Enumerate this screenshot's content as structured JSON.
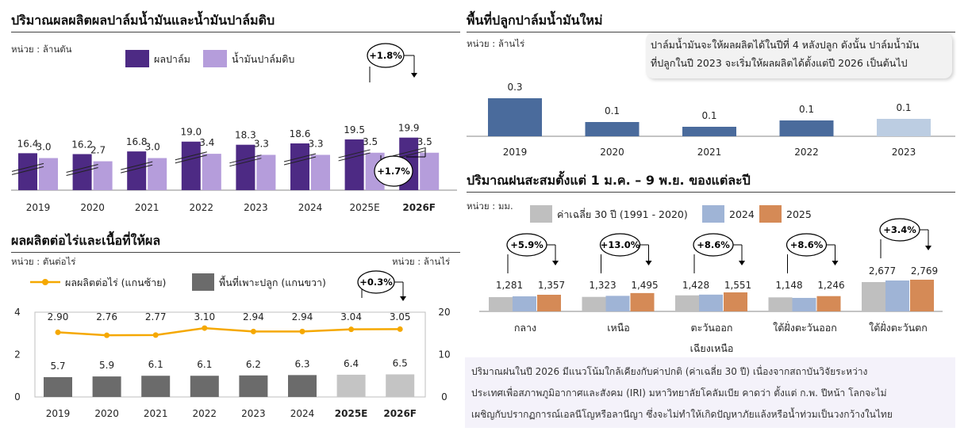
{
  "panel1": {
    "title": "ปริมาณผลผลิตผลปาล์มน้ำมันและน้ำมันปาล์มดิบ",
    "unit": "หน่วย : ล้านตัน",
    "legend": [
      {
        "label": "ผลปาล์ม",
        "color": "#4d2a84"
      },
      {
        "label": "น้ำมันปาล์มดิบ",
        "color": "#b59ddb"
      }
    ],
    "callout_top": "+1.8%",
    "callout_bottom": "+1.7%"
  },
  "panel2": {
    "title": "ผลผลิตต่อไร่และเนื้อที่ให้ผล",
    "unit_left": "หน่วย : ตันต่อไร่",
    "unit_right": "หน่วย : ล้านไร่",
    "legend": [
      {
        "label": "ผลผลิตต่อไร่ (แกนซ้าย)",
        "color": "#f5a800"
      },
      {
        "label": "พื้นที่เพาะปลูก (แกนขวา)",
        "color": "#6b6b6b"
      }
    ],
    "callout": "+0.3%"
  },
  "panel3": {
    "title": "พื้นที่ปลูกปาล์มน้ำมันใหม่",
    "unit": "หน่วย : ล้านไร่",
    "note_lines": [
      "ปาล์มน้ำมันจะให้ผลผลิตได้ในปีที่ 4 หลังปลูก ดังนั้น ปาล์มน้ำมัน",
      "ที่ปลูกในปี 2023 จะเริ่มให้ผลผลิตได้ตั้งแต่ปี 2026 เป็นต้นไป"
    ]
  },
  "panel4": {
    "title": "ปริมาณฝนสะสมตั้งแต่ 1 ม.ค. – 9 พ.ย. ของแต่ละปี",
    "unit": "หน่วย : มม.",
    "legend": [
      {
        "label": "ค่าเฉลี่ย 30 ปี (1991 - 2020)",
        "color": "#bfbfbf"
      },
      {
        "label": "2024",
        "color": "#9fb4d6"
      },
      {
        "label": "2025",
        "color": "#d58a56"
      }
    ],
    "callouts": [
      "+5.9%",
      "+13.0%",
      "+8.6%",
      "+8.6%",
      "+3.4%"
    ],
    "category_lines": [
      [
        "กลาง"
      ],
      [
        "เหนือ"
      ],
      [
        "ตะวันออก",
        "เฉียงเหนือ"
      ],
      [
        "ใต้ฝั่งตะวันออก"
      ],
      [
        "ใต้ฝั่งตะวันตก"
      ]
    ],
    "note_lines": [
      "ปริมาณฝนในปี 2026 มีแนวโน้มใกล้เคียงกับค่าปกติ (ค่าเฉลี่ย 30 ปี) เนื่องจากสถาบันวิจัยระหว่าง",
      "ประเทศเพื่อสภาพภูมิอากาศและสังคม (IRI) มหาวิทยาลัยโคลัมเบีย คาดว่า ตั้งแต่ ก.พ. ปีหน้า โลกจะไม่",
      "เผชิญกับปรากฏการณ์เอลนีโญหรือลานีญา ซึ่งจะไม่ทำให้เกิดปัญหาภัยแล้งหรือน้ำท่วมเป็นวงกว้างในไทย"
    ]
  },
  "chart_data": [
    {
      "type": "bar",
      "title": "ปริมาณผลผลิตผลปาล์มน้ำมันและน้ำมันปาล์มดิบ",
      "categories": [
        "2019",
        "2020",
        "2021",
        "2022",
        "2023",
        "2024",
        "2025E",
        "2026F"
      ],
      "bold_categories": [
        "2026F"
      ],
      "series": [
        {
          "name": "ผลปาล์ม",
          "values": [
            16.4,
            16.2,
            16.8,
            19.0,
            18.3,
            18.6,
            19.5,
            19.9
          ],
          "labels": [
            "16.4",
            "16.2",
            "16.8",
            "19.0",
            "18.3",
            "18.6",
            "19.5",
            "19.9"
          ],
          "color": "#4d2a84"
        },
        {
          "name": "น้ำมันปาล์มดิบ",
          "values": [
            3.0,
            2.7,
            3.0,
            3.4,
            3.3,
            3.3,
            3.5,
            3.5
          ],
          "labels": [
            "3.0",
            "2.7",
            "3.0",
            "3.4",
            "3.3",
            "3.3",
            "3.5",
            "3.5"
          ],
          "color": "#b59ddb"
        }
      ],
      "axis_break": true
    },
    {
      "type": "bar",
      "title": "ผลผลิตต่อไร่และเนื้อที่ให้ผล",
      "categories": [
        "2019",
        "2020",
        "2021",
        "2022",
        "2023",
        "2024",
        "2025E",
        "2026F"
      ],
      "bold_categories": [
        "2025E",
        "2026F"
      ],
      "series": [
        {
          "name": "ผลผลิตต่อไร่ (แกนซ้าย)",
          "type": "line",
          "axis": "left",
          "values": [
            2.9,
            2.76,
            2.77,
            3.1,
            2.94,
            2.94,
            3.04,
            3.05
          ],
          "labels": [
            "2.90",
            "2.76",
            "2.77",
            "3.10",
            "2.94",
            "2.94",
            "3.04",
            "3.05"
          ],
          "color": "#f5a800"
        },
        {
          "name": "พื้นที่เพาะปลูก (แกนขวา)",
          "type": "bar",
          "axis": "right",
          "values": [
            5.7,
            5.9,
            6.1,
            6.1,
            6.2,
            6.3,
            6.4,
            6.5
          ],
          "labels": [
            "5.7",
            "5.9",
            "6.1",
            "6.1",
            "6.2",
            "6.3",
            "6.4",
            "6.5"
          ],
          "colors": [
            "#6b6b6b",
            "#6b6b6b",
            "#6b6b6b",
            "#6b6b6b",
            "#6b6b6b",
            "#6b6b6b",
            "#c4c4c4",
            "#c4c4c4"
          ]
        }
      ],
      "ylim_left": [
        0,
        4
      ],
      "yticks_left": [
        "0",
        "2",
        "4"
      ],
      "ylim_right": [
        0,
        20
      ],
      "yticks_right": [
        "0",
        "10",
        "20"
      ],
      "grid": false
    },
    {
      "type": "bar",
      "title": "พื้นที่ปลูกปาล์มน้ำมันใหม่",
      "categories": [
        "2019",
        "2020",
        "2021",
        "2022",
        "2023"
      ],
      "values": [
        0.3,
        0.1,
        0.1,
        0.1,
        0.1
      ],
      "labels": [
        "0.3",
        "0.1",
        "0.1",
        "0.1",
        "0.1"
      ],
      "colors": [
        "#4a6b9c",
        "#4a6b9c",
        "#4a6b9c",
        "#4a6b9c",
        "#bccde2"
      ]
    },
    {
      "type": "bar",
      "title": "ปริมาณฝนสะสมตั้งแต่ 1 ม.ค. – 9 พ.ย. ของแต่ละปี",
      "categories": [
        "กลาง",
        "เหนือ",
        "ตะวันออกเฉียงเหนือ",
        "ใต้ฝั่งตะวันออก",
        "ใต้ฝั่งตะวันตก"
      ],
      "series": [
        {
          "name": "ค่าเฉลี่ย 30 ปี (1991 - 2020)",
          "values": [
            1200,
            1220,
            1350,
            1180,
            2600
          ],
          "color": "#bfbfbf"
        },
        {
          "name": "2024",
          "values": [
            1281,
            1323,
            1428,
            1148,
            2677
          ],
          "labels": [
            "1,281",
            "1,323",
            "1,428",
            "1,148",
            "2,677"
          ],
          "color": "#9fb4d6"
        },
        {
          "name": "2025",
          "values": [
            1357,
            1495,
            1551,
            1246,
            2769
          ],
          "labels": [
            "1,357",
            "1,495",
            "1,551",
            "1,246",
            "2,769"
          ],
          "color": "#d58a56"
        }
      ]
    }
  ]
}
